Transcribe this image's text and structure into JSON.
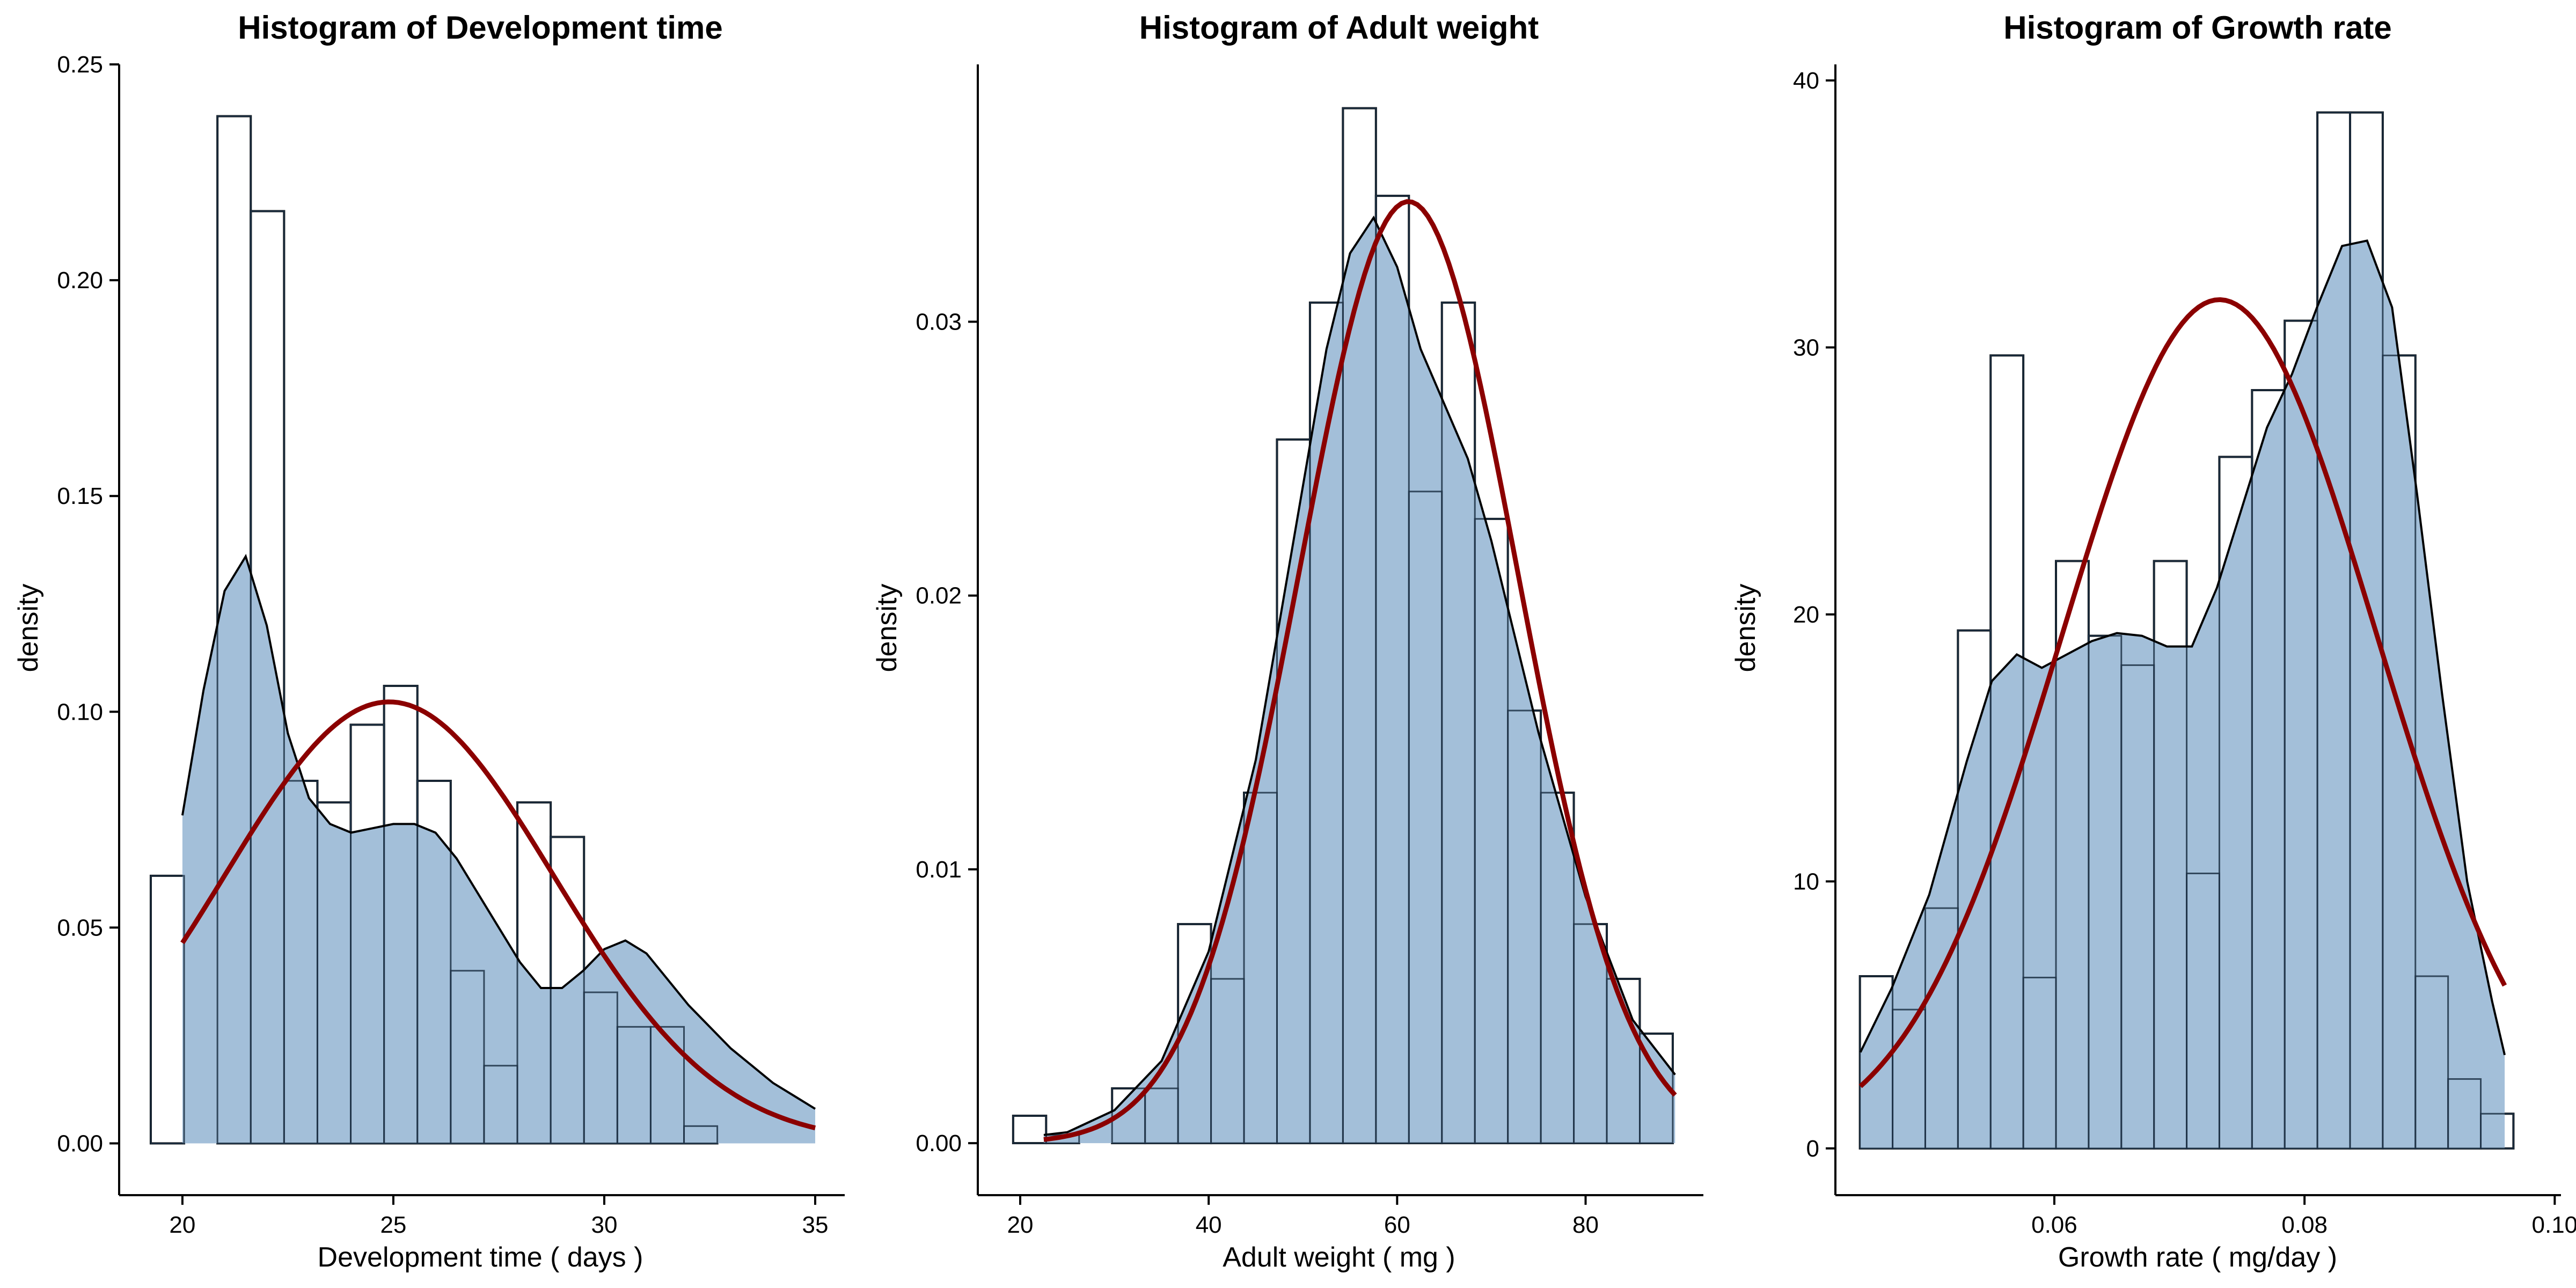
{
  "colors": {
    "hist_stroke": "#000000",
    "density_fill": "#a3bfd9",
    "density_stroke": "#000000",
    "normal_curve": "#8b0000"
  },
  "chart_data": [
    {
      "type": "bar",
      "title": "Histogram of Development time",
      "xlabel": "Development time ( days )",
      "ylabel": "density",
      "xlim": [
        18.5,
        35.7
      ],
      "ylim": [
        -0.012,
        0.25
      ],
      "xticks": [
        20,
        25,
        30,
        35
      ],
      "yticks": [
        0.0,
        0.05,
        0.1,
        0.15,
        0.2,
        0.25
      ],
      "ytick_labels": [
        "0.00",
        "0.05",
        "0.10",
        "0.15",
        "0.20",
        "0.25"
      ],
      "bin_width": 0.79,
      "bin_start": 19.25,
      "histogram": [
        0.062,
        0.0,
        0.238,
        0.216,
        0.084,
        0.079,
        0.097,
        0.106,
        0.084,
        0.04,
        0.018,
        0.079,
        0.071,
        0.035,
        0.027,
        0.027,
        0.004
      ],
      "density_x": [
        20,
        20.5,
        21,
        21.5,
        22,
        22.5,
        23,
        23.5,
        24,
        24.5,
        25,
        25.5,
        26,
        26.5,
        27,
        27.5,
        28,
        28.5,
        29,
        29.5,
        30,
        30.5,
        31,
        31.5,
        32,
        32.5,
        33,
        33.5,
        34,
        34.5,
        35
      ],
      "density_y": [
        0.076,
        0.105,
        0.128,
        0.136,
        0.12,
        0.095,
        0.08,
        0.074,
        0.072,
        0.073,
        0.074,
        0.074,
        0.072,
        0.066,
        0.058,
        0.05,
        0.042,
        0.036,
        0.036,
        0.04,
        0.045,
        0.047,
        0.044,
        0.038,
        0.032,
        0.027,
        0.022,
        0.018,
        0.014,
        0.011,
        0.008
      ],
      "normal_mean": 24.9,
      "normal_sd": 3.9
    },
    {
      "type": "bar",
      "title": "Histogram of Adult weight",
      "xlabel": "Adult weight ( mg )",
      "ylabel": "density",
      "xlim": [
        15.5,
        92.5
      ],
      "ylim": [
        -0.0019,
        0.0394
      ],
      "xticks": [
        20,
        40,
        60,
        80
      ],
      "yticks": [
        0.0,
        0.01,
        0.02,
        0.03
      ],
      "ytick_labels": [
        "0.00",
        "0.01",
        "0.02",
        "0.03"
      ],
      "bin_width": 3.5,
      "bin_start": 19.25,
      "histogram": [
        0.001,
        0.0003,
        0.0,
        0.002,
        0.002,
        0.008,
        0.006,
        0.0128,
        0.0257,
        0.0307,
        0.0378,
        0.0346,
        0.0238,
        0.0307,
        0.0228,
        0.0158,
        0.0128,
        0.008,
        0.006,
        0.004
      ],
      "density_x": [
        22.5,
        25,
        30,
        35,
        40,
        45,
        50,
        52.5,
        55,
        57.5,
        60,
        62.5,
        65,
        67.5,
        70,
        72.5,
        75,
        80,
        85,
        89.5
      ],
      "density_y": [
        0.0003,
        0.0004,
        0.0012,
        0.003,
        0.007,
        0.014,
        0.024,
        0.029,
        0.0325,
        0.0338,
        0.032,
        0.029,
        0.027,
        0.025,
        0.022,
        0.0185,
        0.015,
        0.009,
        0.0045,
        0.0025
      ],
      "normal_mean": 61.2,
      "normal_sd": 11.6
    },
    {
      "type": "bar",
      "title": "Histogram of Growth rate",
      "xlabel": "Growth rate ( mg/day )",
      "ylabel": "density",
      "xlim": [
        0.0425,
        0.1005
      ],
      "ylim": [
        -1.75,
        40.6
      ],
      "xticks": [
        0.06,
        0.08,
        0.1
      ],
      "xtick_labels": [
        "0.06",
        "0.08",
        "0.10"
      ],
      "yticks": [
        0,
        10,
        20,
        30,
        40
      ],
      "ytick_labels": [
        "0",
        "10",
        "20",
        "30",
        "40"
      ],
      "bin_width": 0.002612,
      "bin_start": 0.04446,
      "histogram": [
        6.45,
        5.2,
        9.0,
        19.4,
        29.7,
        6.4,
        22.0,
        19.2,
        18.1,
        22.0,
        10.3,
        25.9,
        28.4,
        31.0,
        38.8,
        38.8,
        29.7,
        6.45,
        2.6,
        1.3
      ],
      "density_x": [
        0.0445,
        0.047,
        0.05,
        0.053,
        0.055,
        0.057,
        0.059,
        0.061,
        0.063,
        0.065,
        0.067,
        0.069,
        0.071,
        0.073,
        0.075,
        0.077,
        0.079,
        0.081,
        0.083,
        0.085,
        0.087,
        0.089,
        0.091,
        0.093,
        0.095,
        0.096
      ],
      "density_y": [
        3.6,
        6.0,
        9.5,
        14.5,
        17.5,
        18.5,
        18.0,
        18.5,
        19.0,
        19.3,
        19.2,
        18.8,
        18.8,
        21.0,
        24.0,
        27.0,
        29.0,
        31.5,
        33.8,
        34.0,
        31.5,
        24.5,
        17.0,
        10.0,
        5.5,
        3.5
      ],
      "normal_mean": 0.0732,
      "normal_sd": 0.01255
    }
  ]
}
